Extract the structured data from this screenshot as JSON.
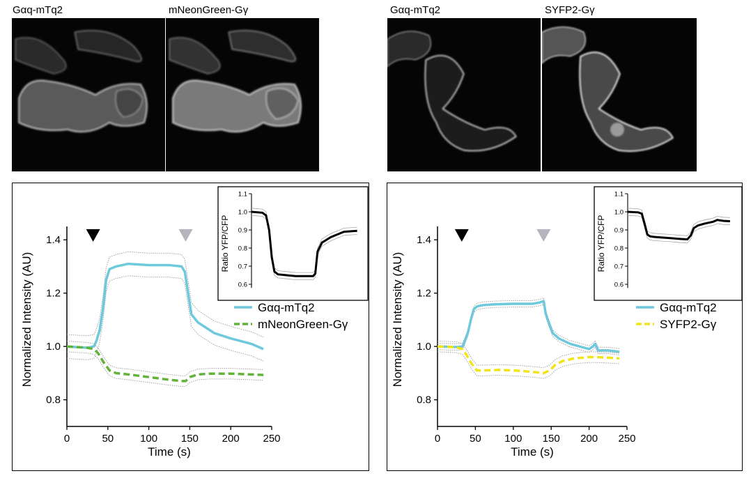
{
  "images": [
    {
      "label": "Gαq-mTq2"
    },
    {
      "label": "mNeonGreen-Gγ"
    },
    {
      "label": "Gαq-mTq2"
    },
    {
      "label": "SYFP2-Gγ"
    }
  ],
  "colors": {
    "cyan": "#6fc9dc",
    "green": "#63b33b",
    "yellow": "#f2e41a",
    "band": "#9a9a9a",
    "ratio": "#000000"
  },
  "chart_data": [
    {
      "type": "line",
      "xlabel": "Time (s)",
      "ylabel": "Normalized Intensity (AU)",
      "xlim": [
        0,
        250
      ],
      "ylim": [
        0.7,
        1.45
      ],
      "xticks": [
        "0",
        "50",
        "100",
        "150",
        "200",
        "250"
      ],
      "yticks": [
        "0.8",
        "1.0",
        "1.2",
        "1.4"
      ],
      "markers": [
        {
          "x": 32,
          "color": "#000000"
        },
        {
          "x": 145,
          "color": "#b4b4be"
        }
      ],
      "series": [
        {
          "name": "Gαq-mTq2",
          "color": "#6fc9dc",
          "dash": false,
          "x": [
            0,
            25,
            33,
            36,
            40,
            44,
            48,
            52,
            60,
            75,
            100,
            125,
            140,
            144,
            148,
            152,
            160,
            170,
            180,
            200,
            225,
            240
          ],
          "y": [
            1.0,
            0.995,
            1.0,
            1.02,
            1.06,
            1.14,
            1.25,
            1.29,
            1.3,
            1.31,
            1.305,
            1.305,
            1.3,
            1.28,
            1.2,
            1.12,
            1.09,
            1.07,
            1.05,
            1.03,
            1.01,
            0.99
          ]
        },
        {
          "name": "mNeonGreen-Gγ",
          "color": "#63b33b",
          "dash": true,
          "x": [
            0,
            25,
            33,
            38,
            45,
            52,
            60,
            75,
            100,
            125,
            140,
            145,
            150,
            160,
            175,
            200,
            225,
            240
          ],
          "y": [
            1.0,
            0.995,
            0.99,
            0.975,
            0.94,
            0.91,
            0.9,
            0.895,
            0.885,
            0.875,
            0.87,
            0.87,
            0.885,
            0.895,
            0.898,
            0.898,
            0.895,
            0.893
          ]
        }
      ],
      "inset": {
        "ylabel": "Ratio YFP/CFP",
        "ylim": [
          0.55,
          1.1
        ],
        "yticks": [
          "1.1",
          "1.0",
          "0.9",
          "0.8",
          "0.7",
          "0.6"
        ],
        "x": [
          0,
          25,
          33,
          40,
          46,
          52,
          60,
          80,
          100,
          125,
          140,
          145,
          150,
          160,
          180,
          210,
          240
        ],
        "y": [
          1.0,
          0.995,
          0.98,
          0.9,
          0.75,
          0.67,
          0.655,
          0.65,
          0.645,
          0.645,
          0.645,
          0.66,
          0.78,
          0.83,
          0.86,
          0.89,
          0.895
        ]
      }
    },
    {
      "type": "line",
      "xlabel": "Time (s)",
      "ylabel": "Normalized Intensity (AU)",
      "xlim": [
        0,
        250
      ],
      "ylim": [
        0.7,
        1.45
      ],
      "xticks": [
        "0",
        "50",
        "100",
        "150",
        "200",
        "250"
      ],
      "yticks": [
        "0.8",
        "1.0",
        "1.2",
        "1.4"
      ],
      "markers": [
        {
          "x": 32,
          "color": "#000000"
        },
        {
          "x": 140,
          "color": "#b4b4be"
        }
      ],
      "series": [
        {
          "name": "Gαq-mTq2",
          "color": "#6fc9dc",
          "dash": false,
          "x": [
            0,
            25,
            33,
            36,
            40,
            44,
            48,
            52,
            60,
            75,
            100,
            125,
            135,
            140,
            143,
            148,
            152,
            160,
            175,
            200,
            205,
            208,
            212,
            225,
            240
          ],
          "y": [
            1.0,
            0.998,
            1.0,
            1.02,
            1.05,
            1.1,
            1.14,
            1.15,
            1.155,
            1.158,
            1.16,
            1.16,
            1.165,
            1.17,
            1.12,
            1.08,
            1.05,
            1.03,
            1.01,
            0.99,
            1.0,
            1.01,
            0.985,
            0.985,
            0.98
          ]
        },
        {
          "name": "SYFP2-Gγ",
          "color": "#f2e41a",
          "dash": true,
          "x": [
            0,
            25,
            33,
            38,
            45,
            52,
            60,
            80,
            100,
            125,
            140,
            148,
            155,
            165,
            180,
            200,
            210,
            225,
            240
          ],
          "y": [
            1.0,
            0.997,
            0.99,
            0.97,
            0.935,
            0.91,
            0.91,
            0.912,
            0.91,
            0.905,
            0.9,
            0.91,
            0.93,
            0.945,
            0.955,
            0.96,
            0.96,
            0.958,
            0.955
          ]
        }
      ],
      "inset": {
        "ylabel": "Ratio YFP/CFP",
        "ylim": [
          0.55,
          1.1
        ],
        "yticks": [
          "1.1",
          "1.0",
          "0.9",
          "0.8",
          "0.7",
          "0.6"
        ],
        "x": [
          0,
          25,
          33,
          40,
          46,
          52,
          60,
          80,
          100,
          125,
          140,
          148,
          155,
          165,
          180,
          200,
          210,
          225,
          240
        ],
        "y": [
          1.0,
          0.997,
          0.99,
          0.93,
          0.875,
          0.865,
          0.862,
          0.858,
          0.855,
          0.85,
          0.848,
          0.87,
          0.91,
          0.925,
          0.935,
          0.945,
          0.955,
          0.95,
          0.948
        ]
      }
    }
  ]
}
